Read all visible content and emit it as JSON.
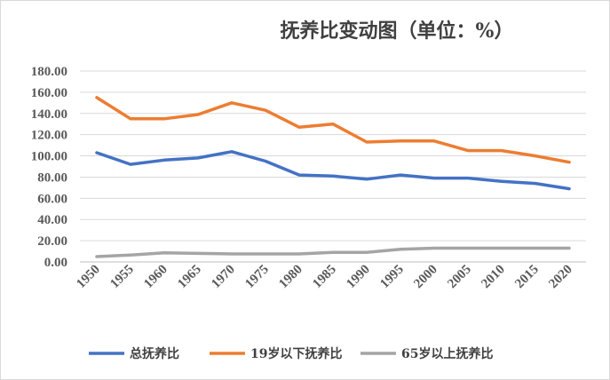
{
  "chart_data": {
    "type": "line",
    "title": "抚养比变动图（单位：%）",
    "xlabel": "",
    "ylabel": "",
    "ylim": [
      0,
      180
    ],
    "yticks": [
      "0.00",
      "20.00",
      "40.00",
      "60.00",
      "80.00",
      "100.00",
      "120.00",
      "140.00",
      "160.00",
      "180.00"
    ],
    "categories": [
      "1950",
      "1955",
      "1960",
      "1965",
      "1970",
      "1975",
      "1980",
      "1985",
      "1990",
      "1995",
      "2000",
      "2005",
      "2010",
      "2015",
      "2020"
    ],
    "grid": true,
    "legend_position": "bottom",
    "series": [
      {
        "name": "总抚养比",
        "color": "#4472c4",
        "values": [
          103,
          92,
          96,
          98,
          104,
          95,
          82,
          81,
          78,
          82,
          79,
          79,
          76,
          74,
          69
        ]
      },
      {
        "name": "19岁以下抚养比",
        "color": "#ed7d31",
        "values": [
          155,
          135,
          135,
          139,
          150,
          143,
          127,
          130,
          113,
          114,
          114,
          105,
          105,
          100,
          94
        ]
      },
      {
        "name": "65岁以上抚养比",
        "color": "#a5a5a5",
        "values": [
          5,
          6.5,
          8.5,
          8,
          7.5,
          7.5,
          7.5,
          9,
          9,
          12,
          13,
          13,
          13,
          13,
          13
        ]
      }
    ]
  }
}
